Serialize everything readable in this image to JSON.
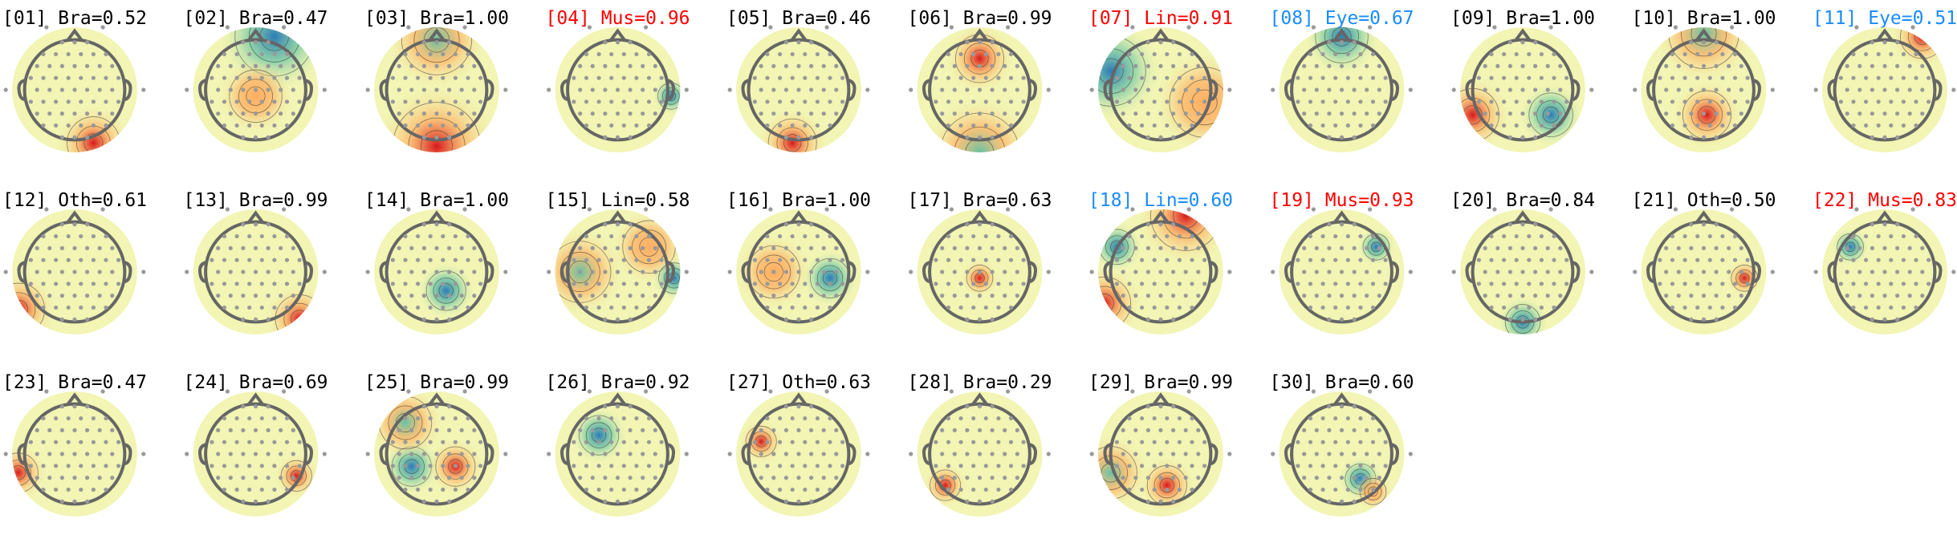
{
  "components": [
    {
      "label": "[01] Bra=0.52",
      "color": "#000000"
    },
    {
      "label": "[02] Bra=0.47",
      "color": "#000000"
    },
    {
      "label": "[03] Bra=1.00",
      "color": "#000000"
    },
    {
      "label": "[04] Mus=0.96",
      "color": "#ff0000"
    },
    {
      "label": "[05] Bra=0.46",
      "color": "#000000"
    },
    {
      "label": "[06] Bra=0.99",
      "color": "#000000"
    },
    {
      "label": "[07] Lin=0.91",
      "color": "#ff0000"
    },
    {
      "label": "[08] Eye=0.67",
      "color": "#1a8cff"
    },
    {
      "label": "[09] Bra=1.00",
      "color": "#000000"
    },
    {
      "label": "[10] Bra=1.00",
      "color": "#000000"
    },
    {
      "label": "[11] Eye=0.51",
      "color": "#1a8cff"
    },
    {
      "label": "[12] Oth=0.61",
      "color": "#000000"
    },
    {
      "label": "[13] Bra=0.99",
      "color": "#000000"
    },
    {
      "label": "[14] Bra=1.00",
      "color": "#000000"
    },
    {
      "label": "[15] Lin=0.58",
      "color": "#000000"
    },
    {
      "label": "[16] Bra=1.00",
      "color": "#000000"
    },
    {
      "label": "[17] Bra=0.63",
      "color": "#000000"
    },
    {
      "label": "[18] Lin=0.60",
      "color": "#1a8cff"
    },
    {
      "label": "[19] Mus=0.93",
      "color": "#ff0000"
    },
    {
      "label": "[20] Bra=0.84",
      "color": "#000000"
    },
    {
      "label": "[21] Oth=0.50",
      "color": "#000000"
    },
    {
      "label": "[22] Mus=0.83",
      "color": "#ff0000"
    },
    {
      "label": "[23] Bra=0.47",
      "color": "#000000"
    },
    {
      "label": "[24] Bra=0.69",
      "color": "#000000"
    },
    {
      "label": "[25] Bra=0.99",
      "color": "#000000"
    },
    {
      "label": "[26] Bra=0.92",
      "color": "#000000"
    },
    {
      "label": "[27] Oth=0.63",
      "color": "#000000"
    },
    {
      "label": "[28] Bra=0.29",
      "color": "#000000"
    },
    {
      "label": "[29] Bra=0.99",
      "color": "#000000"
    },
    {
      "label": "[30] Bra=0.60",
      "color": "#000000"
    }
  ]
}
